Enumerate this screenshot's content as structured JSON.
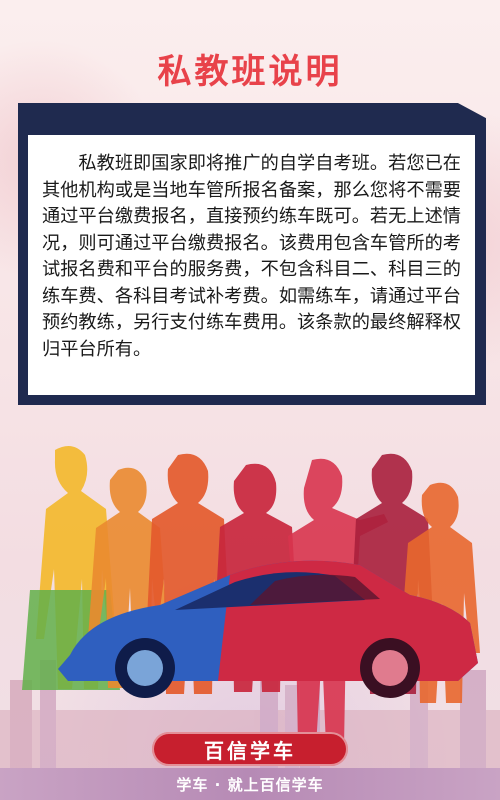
{
  "page": {
    "title": "私教班说明",
    "description": "私教班即国家即将推广的自学自考班。若您已在其他机构或是当地车管所报名备案，那么您将不需要通过平台缴费报名，直接预约练车既可。若无上述情况，则可通过平台缴费报名。该费用包含车管所的考试报名费和平台的服务费，不包含科目二、科目三的练车费、各科目考试补考费。如需练车，请通过平台预约教练，另行支付练车费用。该条款的最终解释权归平台所有。"
  },
  "brand": {
    "name": "百信学车",
    "slogan": "学车 · 就上百信学车"
  },
  "colors": {
    "title": "#e8424a",
    "card_frame": "#1f2a4f",
    "brand_pill": "#c71f2e"
  }
}
